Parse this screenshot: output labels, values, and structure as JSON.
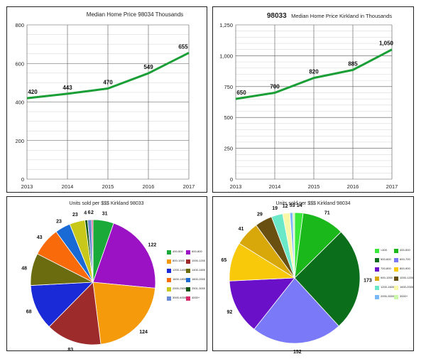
{
  "chart_data": [
    {
      "type": "line",
      "title": "Median Home Price 98034 Thousands",
      "x": [
        "2013",
        "2014",
        "2015",
        "2016",
        "2017"
      ],
      "values": [
        420,
        443,
        470,
        549,
        655
      ],
      "data_labels": [
        "420",
        "443",
        "470",
        "549",
        "655"
      ],
      "yticks": [
        "0",
        "200",
        "400",
        "600",
        "800"
      ],
      "ylim": [
        0,
        800
      ],
      "grid": true,
      "color": "#1a9e36"
    },
    {
      "type": "line",
      "title_prefix": "98033",
      "title": "Median Home Price Kirkland in Thousands",
      "x": [
        "2013",
        "2014",
        "2015",
        "2016",
        "2017"
      ],
      "values": [
        650,
        700,
        820,
        885,
        1050
      ],
      "data_labels": [
        "650",
        "700",
        "820",
        "885",
        "1,050"
      ],
      "yticks": [
        "0",
        "250",
        "500",
        "750",
        "1,000",
        "1,250"
      ],
      "ylim": [
        0,
        1250
      ],
      "grid": true,
      "color": "#1a9e36"
    },
    {
      "type": "pie",
      "title": "Units sold per $$$ Kirkland 98033",
      "slices": [
        {
          "label": "400-500",
          "value": 31,
          "color": "#1aaa3a"
        },
        {
          "label": "600-800",
          "value": 122,
          "color": "#9a12c4"
        },
        {
          "label": "800-1000",
          "value": 124,
          "color": "#f59a0a"
        },
        {
          "label": "1000-1200",
          "value": 83,
          "color": "#9e2b2b"
        },
        {
          "label": "1200-1400",
          "value": 68,
          "color": "#1a2ad6"
        },
        {
          "label": "1400-1600",
          "value": 48,
          "color": "#6b6b10"
        },
        {
          "label": "1600-1800",
          "value": 43,
          "color": "#f86a0a"
        },
        {
          "label": "1800-2000",
          "value": 23,
          "color": "#1a6ad6"
        },
        {
          "label": "2000-2500",
          "value": 23,
          "color": "#c8c81a"
        },
        {
          "label": "2501-3000",
          "value": 4,
          "color": "#105510"
        },
        {
          "label": "3000-4000",
          "value": 6,
          "color": "#6a8ad6"
        },
        {
          "label": "4000+",
          "value": 2,
          "color": "#d62a6a"
        }
      ],
      "data_labels": [
        "31",
        "122",
        "124",
        "83",
        "68",
        "48",
        "43",
        "23",
        "23",
        "4",
        "6",
        "2"
      ],
      "legend_position": "right"
    },
    {
      "type": "pie",
      "title": "Units sold per $$$ Kirkland 98034",
      "slices": [
        {
          "label": "<400",
          "value": 14,
          "color": "#3ae83a"
        },
        {
          "label": "400-500",
          "value": 71,
          "color": "#1ab81a"
        },
        {
          "label": "500-600",
          "value": 173,
          "color": "#0a6e1a"
        },
        {
          "label": "600-700",
          "value": 152,
          "color": "#7a7af8"
        },
        {
          "label": "700-800",
          "value": 92,
          "color": "#6a10c8"
        },
        {
          "label": "800-900",
          "value": 65,
          "color": "#f8c80a"
        },
        {
          "label": "900-1000",
          "value": 41,
          "color": "#d8a80a"
        },
        {
          "label": "1000-1200",
          "value": 29,
          "color": "#6a5010"
        },
        {
          "label": "1200-1600",
          "value": 19,
          "color": "#6ae8c8"
        },
        {
          "label": "1600-2000",
          "value": 12,
          "color": "#f8f8a8"
        },
        {
          "label": "2000-3000",
          "value": 5,
          "color": "#7ab8f8"
        },
        {
          "label": "3000+",
          "value": 3,
          "color": "#c8f8a8"
        }
      ],
      "data_labels": [
        "14",
        "71",
        "173",
        "152",
        "92",
        "65",
        "41",
        "29",
        "19",
        "12",
        "5",
        "3"
      ],
      "legend_position": "right"
    }
  ]
}
